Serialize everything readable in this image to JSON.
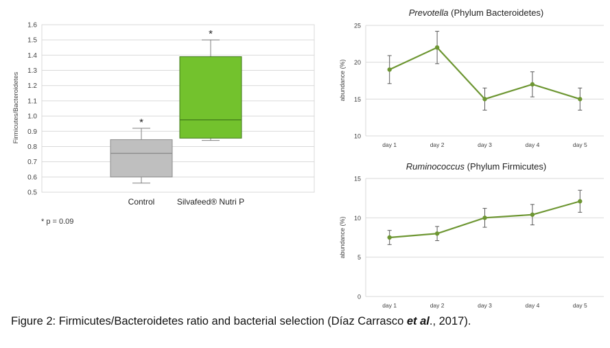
{
  "caption": {
    "prefix": "Figure 2: Firmicutes/Bacteroidetes ratio and bacterial selection (Díaz Carrasco ",
    "etal": "et al",
    "suffix": "., 2017)."
  },
  "colors": {
    "control_box": "#bfbfbf",
    "treatment_box": "#73c22d",
    "line_series": "#6d9632",
    "grid": "#d9d9d9",
    "axis_text": "#404040"
  },
  "chart_data": [
    {
      "type": "box",
      "title": "",
      "ylabel": "Firmicutes/Bacteroidetes",
      "ylim": [
        0.5,
        1.6
      ],
      "yticks": [
        "0.5",
        "0.6",
        "0.7",
        "0.8",
        "0.9",
        "1.0",
        "1.1",
        "1.2",
        "1.3",
        "1.4",
        "1.5",
        "1.6"
      ],
      "categories": [
        "Control",
        "Silvafeed® Nutri P"
      ],
      "boxes": [
        {
          "name": "Control",
          "min": 0.56,
          "q1": 0.6,
          "median": 0.755,
          "q3": 0.845,
          "max": 0.92,
          "marker": "*"
        },
        {
          "name": "Silvafeed® Nutri P",
          "min": 0.84,
          "q1": 0.855,
          "median": 0.975,
          "q3": 1.39,
          "max": 1.5,
          "marker": "*"
        }
      ],
      "note": "* p = 0.09"
    },
    {
      "type": "line",
      "title_italic": "Prevotella",
      "title_rest": " (Phylum Bacteroidetes)",
      "ylabel": "abundance (%)",
      "ylim": [
        10,
        25
      ],
      "yticks": [
        "10",
        "15",
        "20",
        "25"
      ],
      "categories": [
        "day 1",
        "day 2",
        "day 3",
        "day 4",
        "day 5"
      ],
      "values": [
        19,
        22,
        15,
        17,
        15
      ],
      "errors": [
        1.9,
        2.2,
        1.5,
        1.7,
        1.5
      ]
    },
    {
      "type": "line",
      "title_italic": "Ruminococcus",
      "title_rest": " (Phylum Firmicutes)",
      "ylabel": "abundance (%)",
      "ylim": [
        0,
        15
      ],
      "yticks": [
        "0",
        "5",
        "10",
        "15"
      ],
      "categories": [
        "day 1",
        "day 2",
        "day 3",
        "day 4",
        "day 5"
      ],
      "values": [
        7.5,
        8,
        10,
        10.4,
        12.1
      ],
      "errors": [
        0.9,
        0.9,
        1.2,
        1.3,
        1.4
      ]
    }
  ]
}
